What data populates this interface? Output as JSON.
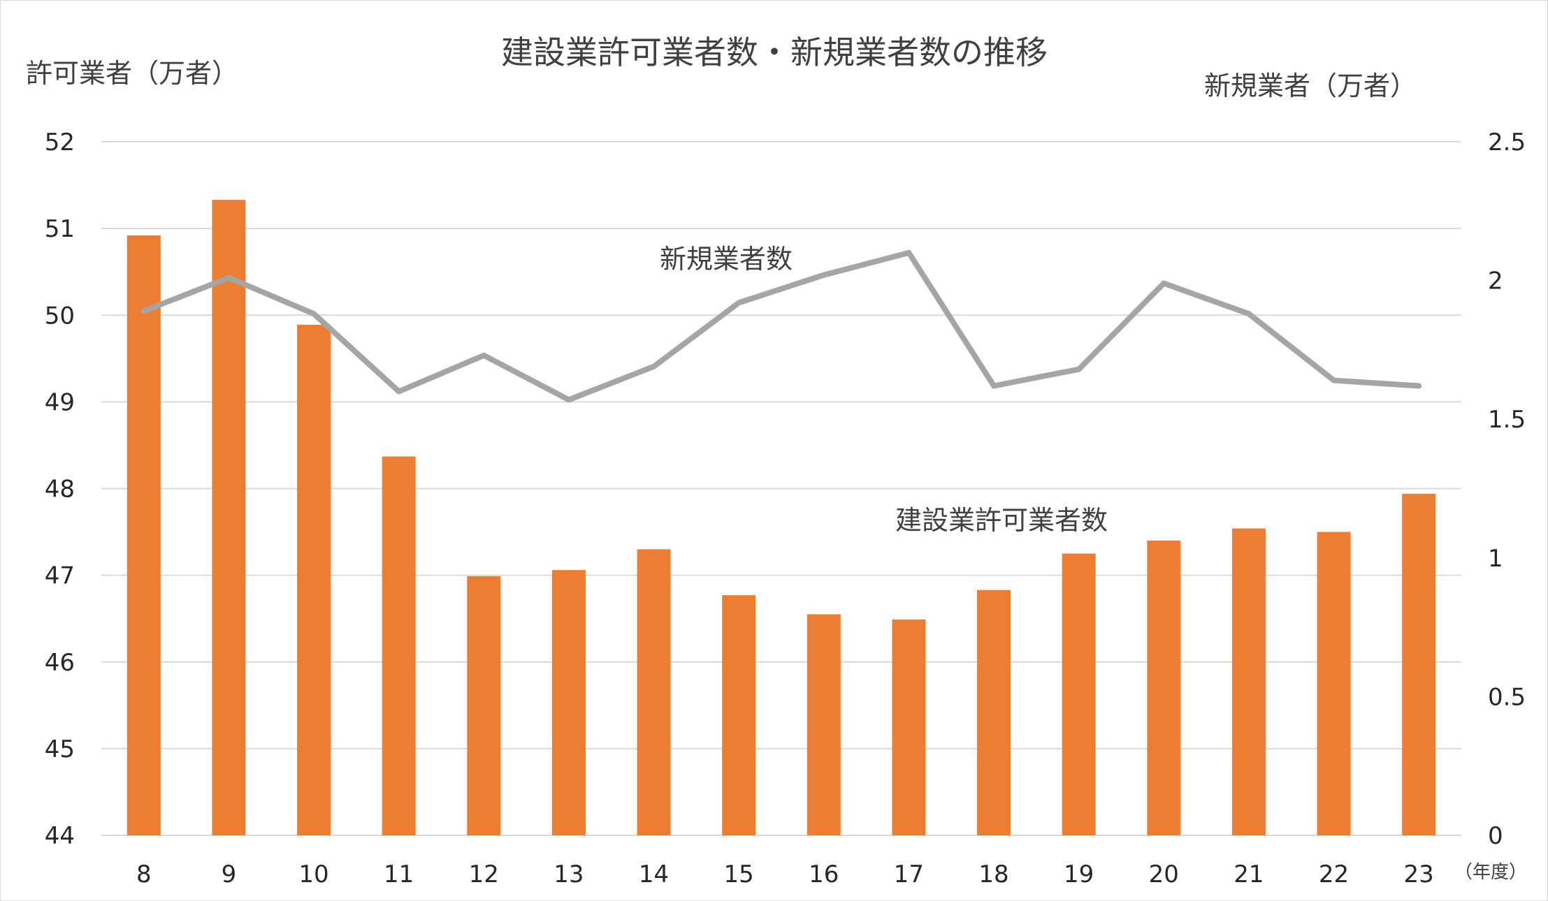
{
  "chart_data": {
    "type": "bar",
    "title": "建設業許可業者数・新規業者数の推移",
    "categories": [
      "8",
      "9",
      "10",
      "11",
      "12",
      "13",
      "14",
      "15",
      "16",
      "17",
      "18",
      "19",
      "20",
      "21",
      "22",
      "23"
    ],
    "x_unit": "（年度）",
    "ylabel_left": "許可業者（万者）",
    "ylabel_right": "新規業者（万者）",
    "ylim_left": [
      44,
      52
    ],
    "ylim_right": [
      0,
      2.5
    ],
    "yticks_left": [
      "44",
      "45",
      "46",
      "47",
      "48",
      "49",
      "50",
      "51",
      "52"
    ],
    "yticks_right": [
      "0",
      "0.5",
      "1",
      "1.5",
      "2",
      "2.5"
    ],
    "grid": true,
    "series": [
      {
        "name": "建設業許可業者数",
        "type": "bar",
        "axis": "left",
        "color": "#ed7d31",
        "values": [
          50.92,
          51.33,
          49.89,
          48.37,
          46.99,
          47.06,
          47.3,
          46.77,
          46.55,
          46.49,
          46.83,
          47.25,
          47.4,
          47.54,
          47.5,
          47.94
        ]
      },
      {
        "name": "新規業者数",
        "type": "line",
        "axis": "right",
        "color": "#a5a5a5",
        "values": [
          1.89,
          2.01,
          1.88,
          1.6,
          1.73,
          1.57,
          1.69,
          1.92,
          2.02,
          2.1,
          1.62,
          1.68,
          1.99,
          1.88,
          1.64,
          1.62
        ]
      }
    ],
    "annotations": {
      "line_label": "新規業者数",
      "bar_label": "建設業許可業者数"
    }
  }
}
